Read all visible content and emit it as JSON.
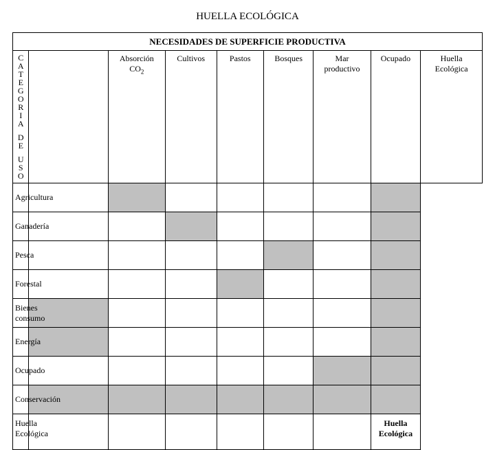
{
  "title": "HUELLA ECOLÓGICA",
  "super_header": "NECESIDADES DE SUPERFICIE PRODUCTIVA",
  "vertical_label": "CATEGORIA DE USO",
  "columns": [
    "Absorción CO2",
    "Cultivos",
    "Pastos",
    "Bosques",
    "Mar productivo",
    "Ocupado",
    "Huella Ecológica"
  ],
  "column_labels": {
    "c0a": "Absorción",
    "c0b": "CO",
    "c0sub": "2",
    "c1": "Cultivos",
    "c2": "Pastos",
    "c3": "Bosques",
    "c4a": "Mar",
    "c4b": "productivo",
    "c5": "Ocupado",
    "c6a": "Huella",
    "c6b": "Ecológica"
  },
  "rows": [
    {
      "label": "Agricultura",
      "shaded": [
        false,
        true,
        false,
        false,
        false,
        false,
        true
      ]
    },
    {
      "label": "Ganadería",
      "shaded": [
        false,
        false,
        true,
        false,
        false,
        false,
        true
      ]
    },
    {
      "label": "Pesca",
      "shaded": [
        false,
        false,
        false,
        false,
        true,
        false,
        true
      ]
    },
    {
      "label": "Forestal",
      "shaded": [
        false,
        false,
        false,
        true,
        false,
        false,
        true
      ]
    },
    {
      "label": "Bienes consumo",
      "shaded": [
        true,
        false,
        false,
        false,
        false,
        false,
        true
      ]
    },
    {
      "label": "Energía",
      "shaded": [
        true,
        false,
        false,
        false,
        false,
        false,
        true
      ]
    },
    {
      "label": "Ocupado",
      "shaded": [
        false,
        false,
        false,
        false,
        false,
        true,
        true
      ]
    },
    {
      "label": "Conservación",
      "shaded": [
        true,
        true,
        true,
        true,
        true,
        true,
        true
      ]
    }
  ],
  "footer_row": {
    "label": "Huella Ecológica",
    "final_text_a": "Huella",
    "final_text_b": "Ecológica"
  },
  "style": {
    "shaded_color": "#c0c0c0",
    "border_color": "#000000",
    "background": "#ffffff",
    "font_family": "Times New Roman",
    "cols_width": [
      "22px",
      "108px",
      "78px",
      "70px",
      "64px",
      "68px",
      "78px",
      "68px",
      "84px"
    ]
  }
}
